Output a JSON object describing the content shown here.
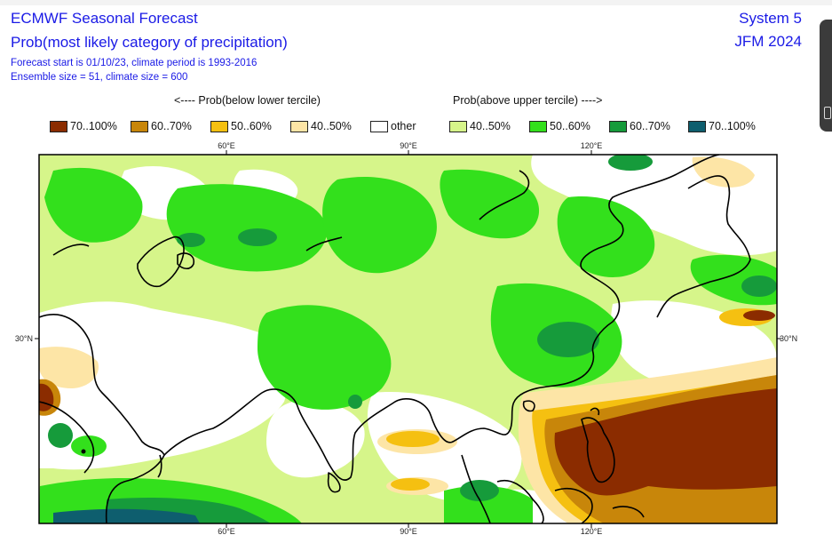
{
  "header": {
    "title": "ECMWF Seasonal Forecast",
    "subtitle": "Prob(most likely category of precipitation)",
    "line3": "Forecast start is 01/10/23, climate period is 1993-2016",
    "line4": "Ensemble size = 51, climate size = 600",
    "system": "System 5",
    "period": "JFM 2024"
  },
  "legend_headers": {
    "below": "<---- Prob(below lower tercile)",
    "above": "Prob(above upper tercile) ---->"
  },
  "legend": [
    {
      "label": "70..100%",
      "color": "#8b2c00"
    },
    {
      "label": "60..70%",
      "color": "#c8860a"
    },
    {
      "label": "50..60%",
      "color": "#f5c011"
    },
    {
      "label": "40..50%",
      "color": "#fde5a6"
    },
    {
      "label": "other",
      "color": "#ffffff"
    },
    {
      "label": "40..50%",
      "color": "#d6f58a"
    },
    {
      "label": "50..60%",
      "color": "#33e01c"
    },
    {
      "label": "60..70%",
      "color": "#169b3b"
    },
    {
      "label": "70..100%",
      "color": "#0e5e6e"
    }
  ],
  "map": {
    "ticks_top": [
      "60°E",
      "90°E",
      "120°E"
    ],
    "ticks_bottom": [
      "60°E",
      "90°E",
      "120°E"
    ],
    "lat_left": "30°N",
    "lat_right": "30°N",
    "notable_signals": [
      {
        "region": "Philippines / western Pacific",
        "category": "below lower tercile",
        "probability": "70..100%"
      },
      {
        "region": "Central and East Asia",
        "category": "above upper tercile",
        "probability": "50..70%"
      }
    ]
  }
}
